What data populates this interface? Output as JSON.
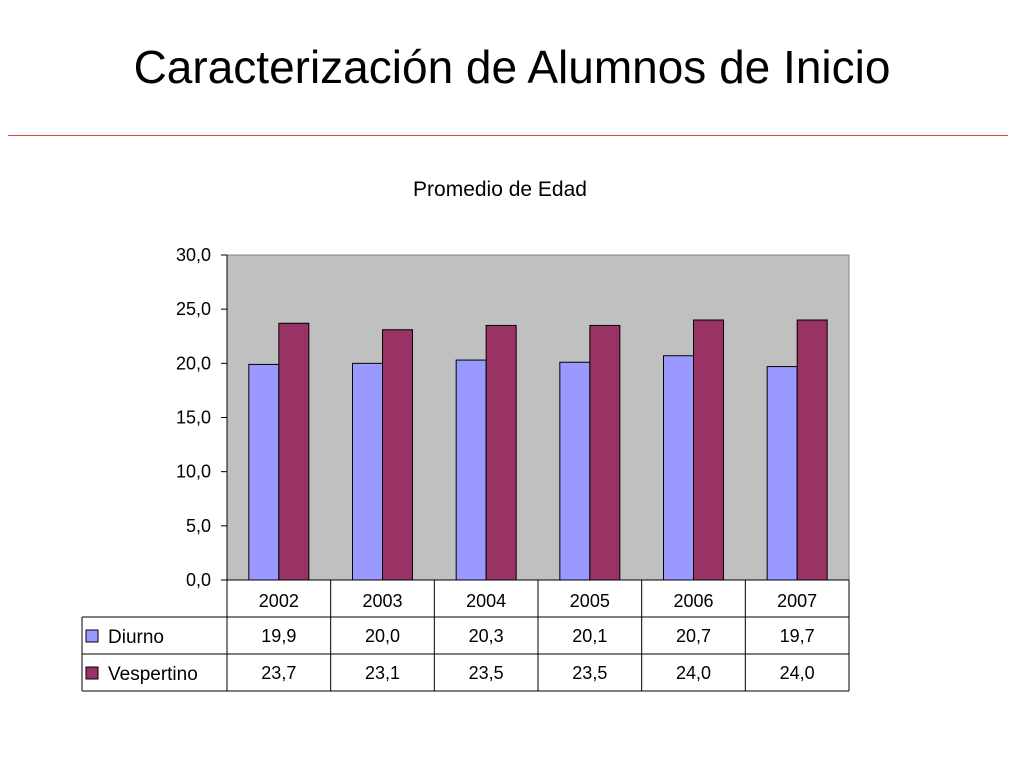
{
  "slide": {
    "title": "Caracterización de Alumnos de Inicio"
  },
  "colors": {
    "title_rule": "#d04a4a",
    "plot_background": "#c0c0c0"
  },
  "chart_data": {
    "type": "bar",
    "title": "Promedio de Edad",
    "categories": [
      "2002",
      "2003",
      "2004",
      "2005",
      "2006",
      "2007"
    ],
    "series": [
      {
        "name": "Diurno",
        "color": "#9999ff",
        "values": [
          19.9,
          20.0,
          20.3,
          20.1,
          20.7,
          19.7
        ],
        "labels": [
          "19,9",
          "20,0",
          "20,3",
          "20,1",
          "20,7",
          "19,7"
        ]
      },
      {
        "name": "Vespertino",
        "color": "#993366",
        "values": [
          23.7,
          23.1,
          23.5,
          23.5,
          24.0,
          24.0
        ],
        "labels": [
          "23,7",
          "23,1",
          "23,5",
          "23,5",
          "24,0",
          "24,0"
        ]
      }
    ],
    "ylim": [
      0,
      30
    ],
    "yticks": [
      0,
      5,
      10,
      15,
      20,
      25,
      30
    ],
    "ytick_labels": [
      "0,0",
      "5,0",
      "10,0",
      "15,0",
      "20,0",
      "25,0",
      "30,0"
    ],
    "grid": false,
    "legend": "data-table-left",
    "data_table": true
  }
}
